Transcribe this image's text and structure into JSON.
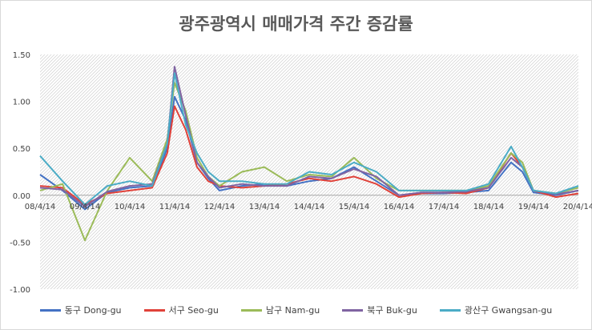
{
  "chart_data": {
    "type": "line",
    "title": "광주광역시 매매가격 주간 증감률",
    "xlabel": "",
    "ylabel": "",
    "ylim": [
      -1.0,
      1.5
    ],
    "yticks": [
      1.5,
      1.0,
      0.5,
      0.0,
      -0.5,
      -1.0
    ],
    "ytick_labels": [
      "1.50",
      "1.00",
      "0.50",
      "0.00",
      "-0.50",
      "-1.00"
    ],
    "x_tick_labels": [
      "08/4/14",
      "09/4/14",
      "10/4/14",
      "11/4/14",
      "12/4/14",
      "13/4/14",
      "14/4/14",
      "15/4/14",
      "16/4/14",
      "17/4/14",
      "18/4/14",
      "19/4/14",
      "20/4/14"
    ],
    "grid": false,
    "legend_position": "bottom",
    "series": [
      {
        "name": "동구 Dong-gu",
        "color": "#4472C4",
        "x": [
          "2008-04",
          "2008-10",
          "2009-04",
          "2009-10",
          "2010-04",
          "2010-10",
          "2011-02",
          "2011-04",
          "2011-07",
          "2011-10",
          "2012-01",
          "2012-04",
          "2012-10",
          "2013-04",
          "2013-10",
          "2014-04",
          "2014-10",
          "2015-04",
          "2015-10",
          "2016-04",
          "2016-10",
          "2017-04",
          "2017-10",
          "2018-04",
          "2018-10",
          "2019-01",
          "2019-04",
          "2019-10",
          "2020-04"
        ],
        "y": [
          0.22,
          0.05,
          -0.15,
          0.03,
          0.08,
          0.1,
          0.5,
          1.05,
          0.8,
          0.35,
          0.18,
          0.05,
          0.1,
          0.12,
          0.1,
          0.15,
          0.18,
          0.3,
          0.15,
          0.0,
          0.02,
          0.02,
          0.03,
          0.05,
          0.35,
          0.25,
          0.03,
          0.0,
          0.05
        ]
      },
      {
        "name": "서구 Seo-gu",
        "color": "#E0423A",
        "x": [
          "2008-04",
          "2008-10",
          "2009-04",
          "2009-10",
          "2010-04",
          "2010-10",
          "2011-02",
          "2011-04",
          "2011-07",
          "2011-10",
          "2012-01",
          "2012-04",
          "2012-10",
          "2013-04",
          "2013-10",
          "2014-04",
          "2014-10",
          "2015-04",
          "2015-10",
          "2016-04",
          "2016-10",
          "2017-04",
          "2017-10",
          "2018-04",
          "2018-10",
          "2019-01",
          "2019-04",
          "2019-10",
          "2020-04"
        ],
        "y": [
          0.1,
          0.08,
          -0.1,
          0.02,
          0.05,
          0.08,
          0.45,
          0.95,
          0.7,
          0.3,
          0.15,
          0.1,
          0.08,
          0.1,
          0.12,
          0.18,
          0.15,
          0.2,
          0.12,
          -0.02,
          0.02,
          0.03,
          0.02,
          0.08,
          0.45,
          0.3,
          0.05,
          -0.02,
          0.02
        ]
      },
      {
        "name": "남구 Nam-gu",
        "color": "#9BBB59",
        "x": [
          "2008-04",
          "2008-10",
          "2009-04",
          "2009-10",
          "2010-04",
          "2010-10",
          "2011-02",
          "2011-04",
          "2011-07",
          "2011-10",
          "2012-01",
          "2012-04",
          "2012-10",
          "2013-04",
          "2013-10",
          "2014-04",
          "2014-10",
          "2015-04",
          "2015-10",
          "2016-04",
          "2016-10",
          "2017-04",
          "2017-10",
          "2018-04",
          "2018-10",
          "2019-01",
          "2019-04",
          "2019-10",
          "2020-04"
        ],
        "y": [
          0.05,
          0.12,
          -0.48,
          0.05,
          0.4,
          0.15,
          0.6,
          1.2,
          0.9,
          0.4,
          0.2,
          0.1,
          0.25,
          0.3,
          0.15,
          0.22,
          0.2,
          0.4,
          0.18,
          0.05,
          0.05,
          0.05,
          0.05,
          0.1,
          0.45,
          0.35,
          0.05,
          0.02,
          0.08
        ]
      },
      {
        "name": "북구 Buk-gu",
        "color": "#8064A2",
        "x": [
          "2008-04",
          "2008-10",
          "2009-04",
          "2009-10",
          "2010-04",
          "2010-10",
          "2011-02",
          "2011-04",
          "2011-07",
          "2011-10",
          "2012-01",
          "2012-04",
          "2012-10",
          "2013-04",
          "2013-10",
          "2014-04",
          "2014-10",
          "2015-04",
          "2015-10",
          "2016-04",
          "2016-10",
          "2017-04",
          "2017-10",
          "2018-04",
          "2018-10",
          "2019-01",
          "2019-04",
          "2019-10",
          "2020-04"
        ],
        "y": [
          0.08,
          0.06,
          -0.12,
          0.04,
          0.1,
          0.12,
          0.55,
          1.37,
          0.85,
          0.35,
          0.2,
          0.08,
          0.12,
          0.1,
          0.1,
          0.2,
          0.18,
          0.28,
          0.2,
          0.0,
          0.03,
          0.03,
          0.04,
          0.08,
          0.4,
          0.3,
          0.05,
          0.01,
          0.05
        ]
      },
      {
        "name": "광산구 Gwangsan-gu",
        "color": "#4BACC6",
        "x": [
          "2008-04",
          "2008-10",
          "2009-04",
          "2009-10",
          "2010-04",
          "2010-10",
          "2011-02",
          "2011-04",
          "2011-07",
          "2011-10",
          "2012-01",
          "2012-04",
          "2012-10",
          "2013-04",
          "2013-10",
          "2014-04",
          "2014-10",
          "2015-04",
          "2015-10",
          "2016-04",
          "2016-10",
          "2017-04",
          "2017-10",
          "2018-04",
          "2018-10",
          "2019-01",
          "2019-04",
          "2019-10",
          "2020-04"
        ],
        "y": [
          0.42,
          0.15,
          -0.1,
          0.1,
          0.15,
          0.1,
          0.55,
          1.3,
          0.75,
          0.45,
          0.25,
          0.15,
          0.15,
          0.12,
          0.12,
          0.25,
          0.22,
          0.35,
          0.25,
          0.05,
          0.05,
          0.05,
          0.05,
          0.12,
          0.52,
          0.3,
          0.05,
          0.02,
          0.1
        ]
      }
    ]
  }
}
